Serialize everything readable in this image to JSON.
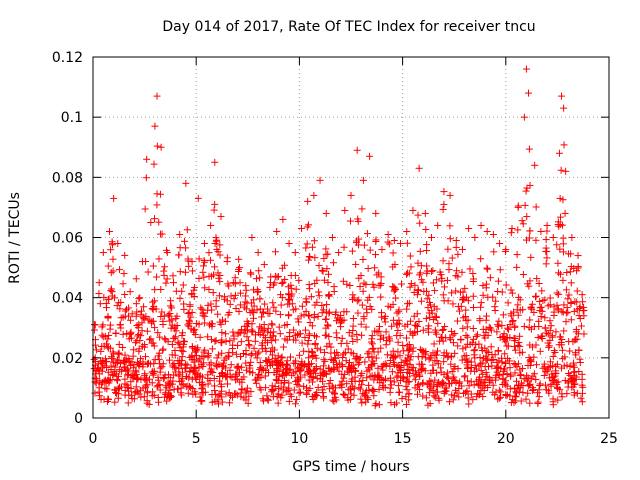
{
  "chart_data": {
    "type": "scatter",
    "title": "Day 014 of 2017, Rate Of TEC Index for receiver tncu",
    "xlabel": "GPS time / hours",
    "ylabel": "ROTI / TECUs",
    "xlim": [
      0,
      25
    ],
    "ylim": [
      0,
      0.12
    ],
    "x_ticks": [
      "0",
      "5",
      "10",
      "15",
      "20",
      "25"
    ],
    "y_ticks": [
      "0",
      "0.02",
      "0.04",
      "0.06",
      "0.08",
      "0.1",
      "0.12"
    ],
    "grid": true,
    "marker": "plus",
    "color": "#ff0000",
    "series": [
      {
        "x": [
          0.1,
          0.3,
          0.5,
          0.8,
          1.0,
          1.2,
          1.5,
          1.8,
          2.1,
          2.4,
          2.6,
          2.8,
          3.0,
          3.1,
          3.3,
          3.6,
          3.9,
          4.2,
          4.5,
          4.8,
          5.1,
          5.4,
          5.7,
          5.9,
          6.2,
          6.5,
          6.8,
          7.1,
          7.4,
          7.7,
          8.0,
          8.3,
          8.6,
          8.9,
          9.2,
          9.5,
          9.8,
          10.1,
          10.4,
          10.7,
          11.0,
          11.3,
          11.6,
          11.9,
          12.2,
          12.5,
          12.8,
          13.1,
          13.4,
          13.7,
          14.0,
          14.3,
          14.6,
          14.9,
          15.2,
          15.5,
          15.8,
          16.1,
          16.4,
          16.7,
          17.0,
          17.3,
          17.6,
          17.9,
          18.2,
          18.5,
          18.8,
          19.1,
          19.4,
          19.7,
          20.0,
          20.3,
          20.6,
          20.9,
          21.0,
          21.1,
          21.4,
          21.7,
          22.0,
          22.3,
          22.6,
          22.7,
          22.8,
          22.9,
          23.2,
          23.5,
          23.7
        ],
        "y": [
          0.012,
          0.045,
          0.055,
          0.062,
          0.073,
          0.058,
          0.048,
          0.042,
          0.038,
          0.052,
          0.086,
          0.065,
          0.097,
          0.107,
          0.09,
          0.055,
          0.045,
          0.061,
          0.078,
          0.052,
          0.073,
          0.058,
          0.064,
          0.085,
          0.067,
          0.052,
          0.045,
          0.05,
          0.044,
          0.06,
          0.055,
          0.051,
          0.045,
          0.062,
          0.066,
          0.058,
          0.055,
          0.063,
          0.072,
          0.074,
          0.079,
          0.068,
          0.06,
          0.055,
          0.069,
          0.074,
          0.089,
          0.079,
          0.087,
          0.068,
          0.056,
          0.061,
          0.059,
          0.058,
          0.062,
          0.069,
          0.083,
          0.068,
          0.06,
          0.064,
          0.071,
          0.074,
          0.059,
          0.056,
          0.063,
          0.06,
          0.064,
          0.062,
          0.061,
          0.058,
          0.056,
          0.063,
          0.07,
          0.1,
          0.116,
          0.108,
          0.084,
          0.062,
          0.064,
          0.06,
          0.088,
          0.107,
          0.103,
          0.082,
          0.06,
          0.054,
          0.041
        ]
      }
    ]
  }
}
